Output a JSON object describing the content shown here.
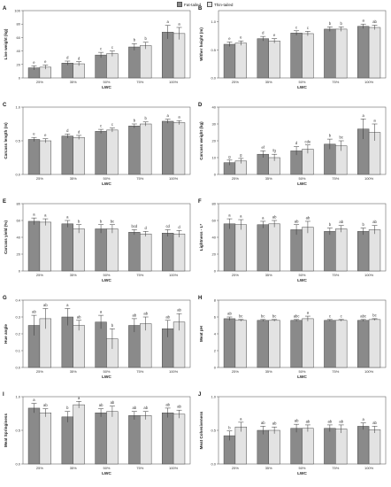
{
  "legend": {
    "items": [
      {
        "label": "Fat-tailed",
        "color": "#8a8a8a"
      },
      {
        "label": "Thin-tailed",
        "color": "#e3e3e3"
      }
    ]
  },
  "colors": {
    "fat": "#8a8a8a",
    "thin": "#e3e3e3",
    "border": "#4a4a4a"
  },
  "chart_data": [
    {
      "panel": "A",
      "type": "bar",
      "ylabel": "Live weight (kg)",
      "xlabel": "LWC",
      "categories": [
        "25%",
        "35%",
        "50%",
        "75%",
        "100%"
      ],
      "ylim": [
        0,
        100
      ],
      "yticks": [
        0,
        20,
        40,
        60,
        80,
        100
      ],
      "series": [
        {
          "name": "Fat-tailed",
          "values": [
            15,
            22,
            34,
            46,
            68
          ],
          "errors": [
            3,
            3,
            4,
            5,
            10
          ]
        },
        {
          "name": "Thin-tailed",
          "values": [
            16,
            21,
            36,
            48,
            66
          ],
          "errors": [
            3,
            3,
            4,
            5,
            9
          ]
        }
      ],
      "letters": [
        [
          "e",
          "e"
        ],
        [
          "d",
          "d"
        ],
        [
          "c",
          "c"
        ],
        [
          "b",
          "b"
        ],
        [
          "a",
          "a"
        ]
      ]
    },
    {
      "panel": "B",
      "type": "bar",
      "ylabel": "Wither height (m)",
      "xlabel": "LWC",
      "categories": [
        "25%",
        "35%",
        "50%",
        "75%",
        "100%"
      ],
      "ylim": [
        0,
        1.2
      ],
      "yticks": [
        0.0,
        0.5,
        1.0
      ],
      "series": [
        {
          "name": "Fat-tailed",
          "values": [
            0.6,
            0.7,
            0.8,
            0.87,
            0.92
          ],
          "errors": [
            0.04,
            0.04,
            0.04,
            0.04,
            0.04
          ]
        },
        {
          "name": "Thin-tailed",
          "values": [
            0.62,
            0.66,
            0.79,
            0.87,
            0.9
          ],
          "errors": [
            0.04,
            0.04,
            0.04,
            0.04,
            0.04
          ]
        }
      ],
      "letters": [
        [
          "e",
          "e"
        ],
        [
          "d",
          "e"
        ],
        [
          "c",
          "c"
        ],
        [
          "b",
          "b"
        ],
        [
          "a",
          "ab"
        ]
      ]
    },
    {
      "panel": "C",
      "type": "bar",
      "ylabel": "Carcass length (m)",
      "xlabel": "LWC",
      "categories": [
        "25%",
        "35%",
        "50%",
        "75%",
        "100%"
      ],
      "ylim": [
        0,
        1.0
      ],
      "yticks": [
        0.0,
        0.5,
        1.0
      ],
      "series": [
        {
          "name": "Fat-tailed",
          "values": [
            0.52,
            0.57,
            0.64,
            0.72,
            0.79
          ],
          "errors": [
            0.03,
            0.03,
            0.03,
            0.03,
            0.03
          ]
        },
        {
          "name": "Thin-tailed",
          "values": [
            0.5,
            0.55,
            0.66,
            0.75,
            0.77
          ],
          "errors": [
            0.03,
            0.03,
            0.03,
            0.03,
            0.03
          ]
        }
      ],
      "letters": [
        [
          "e",
          "e"
        ],
        [
          "d",
          "d"
        ],
        [
          "c",
          "c"
        ],
        [
          "b",
          "b"
        ],
        [
          "a",
          "a"
        ]
      ]
    },
    {
      "panel": "D",
      "type": "bar",
      "ylabel": "Carcass weight (kg)",
      "xlabel": "LWC",
      "categories": [
        "25%",
        "35%",
        "50%",
        "75%",
        "100%"
      ],
      "ylim": [
        0,
        40
      ],
      "yticks": [
        0,
        10,
        20,
        30,
        40
      ],
      "series": [
        {
          "name": "Fat-tailed",
          "values": [
            7,
            12,
            14,
            18,
            27
          ],
          "errors": [
            1.5,
            2,
            2.5,
            3,
            6
          ]
        },
        {
          "name": "Thin-tailed",
          "values": [
            8,
            10,
            15,
            17,
            25
          ],
          "errors": [
            1.5,
            2,
            2.5,
            3,
            5
          ]
        }
      ],
      "letters": [
        [
          "g",
          "g"
        ],
        [
          "ef",
          "fg"
        ],
        [
          "d",
          "cde"
        ],
        [
          "b",
          "bc"
        ],
        [
          "a",
          "a"
        ]
      ]
    },
    {
      "panel": "E",
      "type": "bar",
      "ylabel": "Carcass yield (%)",
      "xlabel": "LWC",
      "categories": [
        "25%",
        "35%",
        "50%",
        "75%",
        "100%"
      ],
      "ylim": [
        0,
        80
      ],
      "yticks": [
        0,
        20,
        40,
        60,
        80
      ],
      "series": [
        {
          "name": "Fat-tailed",
          "values": [
            59,
            56,
            50,
            46,
            45
          ],
          "errors": [
            4,
            4,
            5,
            3,
            4
          ]
        },
        {
          "name": "Thin-tailed",
          "values": [
            58,
            50,
            50,
            44,
            44
          ],
          "errors": [
            4,
            5,
            5,
            3,
            4
          ]
        }
      ],
      "letters": [
        [
          "a",
          "a"
        ],
        [
          "a",
          "b"
        ],
        [
          "b",
          "bc"
        ],
        [
          "bcd",
          "d"
        ],
        [
          "cd",
          "d"
        ]
      ]
    },
    {
      "panel": "F",
      "type": "bar",
      "ylabel": "Lightness - L*",
      "xlabel": "LWC",
      "categories": [
        "25%",
        "35%",
        "50%",
        "75%",
        "100%"
      ],
      "ylim": [
        0,
        80
      ],
      "yticks": [
        0,
        20,
        40,
        60,
        80
      ],
      "series": [
        {
          "name": "Fat-tailed",
          "values": [
            56,
            55,
            49,
            47,
            47
          ],
          "errors": [
            6,
            4,
            6,
            4,
            4
          ]
        },
        {
          "name": "Thin-tailed",
          "values": [
            55,
            56,
            52,
            50,
            49
          ],
          "errors": [
            6,
            4,
            7,
            4,
            5
          ]
        }
      ],
      "letters": [
        [
          "a",
          "a"
        ],
        [
          "a",
          "ab"
        ],
        [
          "ab",
          "ab"
        ],
        [
          "b",
          "ab"
        ],
        [
          "b",
          "ab"
        ]
      ]
    },
    {
      "panel": "G",
      "type": "bar",
      "ylabel": "Hue angle",
      "xlabel": "LWC",
      "categories": [
        "25%",
        "35%",
        "50%",
        "75%",
        "100%"
      ],
      "ylim": [
        0,
        0.4
      ],
      "yticks": [
        0.0,
        0.1,
        0.2,
        0.3,
        0.4
      ],
      "series": [
        {
          "name": "Fat-tailed",
          "values": [
            0.25,
            0.3,
            0.27,
            0.25,
            0.23
          ],
          "errors": [
            0.06,
            0.05,
            0.04,
            0.04,
            0.05
          ]
        },
        {
          "name": "Thin-tailed",
          "values": [
            0.29,
            0.25,
            0.17,
            0.26,
            0.27
          ],
          "errors": [
            0.06,
            0.03,
            0.06,
            0.04,
            0.05
          ]
        }
      ],
      "letters": [
        [
          "ab",
          "ab"
        ],
        [
          "a",
          "ab"
        ],
        [
          "a",
          "b"
        ],
        [
          "ab",
          "ab"
        ],
        [
          "ab",
          "ab"
        ]
      ]
    },
    {
      "panel": "H",
      "type": "bar",
      "ylabel": "Meat pH",
      "xlabel": "LWC",
      "categories": [
        "25%",
        "35%",
        "50%",
        "75%",
        "100%"
      ],
      "ylim": [
        0,
        8
      ],
      "yticks": [
        0,
        2,
        4,
        6,
        8
      ],
      "series": [
        {
          "name": "Fat-tailed",
          "values": [
            5.8,
            5.6,
            5.6,
            5.6,
            5.6
          ],
          "errors": [
            0.2,
            0.1,
            0.1,
            0.1,
            0.1
          ]
        },
        {
          "name": "Thin-tailed",
          "values": [
            5.6,
            5.6,
            5.8,
            5.6,
            5.7
          ],
          "errors": [
            0.1,
            0.1,
            0.3,
            0.1,
            0.1
          ]
        }
      ],
      "letters": [
        [
          "ab",
          "bc"
        ],
        [
          "bc",
          "bc"
        ],
        [
          "abc",
          "a"
        ],
        [
          "c",
          "c"
        ],
        [
          "abc",
          "bc"
        ]
      ]
    },
    {
      "panel": "I",
      "type": "bar",
      "ylabel": "Meat Springiness",
      "xlabel": "LWC",
      "categories": [
        "25%",
        "35%",
        "50%",
        "75%",
        "100%"
      ],
      "ylim": [
        0,
        1.0
      ],
      "yticks": [
        0.0,
        0.5,
        1.0
      ],
      "series": [
        {
          "name": "Fat-tailed",
          "values": [
            0.83,
            0.7,
            0.76,
            0.72,
            0.76
          ],
          "errors": [
            0.07,
            0.08,
            0.06,
            0.06,
            0.07
          ]
        },
        {
          "name": "Thin-tailed",
          "values": [
            0.76,
            0.88,
            0.78,
            0.72,
            0.74
          ],
          "errors": [
            0.06,
            0.05,
            0.08,
            0.06,
            0.06
          ]
        }
      ],
      "letters": [
        [
          "a",
          "ab"
        ],
        [
          "b",
          "a"
        ],
        [
          "ab",
          "ab"
        ],
        [
          "ab",
          "ab"
        ],
        [
          "ab",
          "ab"
        ]
      ]
    },
    {
      "panel": "J",
      "type": "bar",
      "ylabel": "Meat Cohesiveness",
      "xlabel": "LWC",
      "categories": [
        "25%",
        "35%",
        "50%",
        "75%",
        "100%"
      ],
      "ylim": [
        0,
        1.0
      ],
      "yticks": [
        0.0,
        0.5,
        1.0
      ],
      "series": [
        {
          "name": "Fat-tailed",
          "values": [
            0.42,
            0.5,
            0.53,
            0.53,
            0.56
          ],
          "errors": [
            0.07,
            0.06,
            0.06,
            0.05,
            0.05
          ]
        },
        {
          "name": "Thin-tailed",
          "values": [
            0.55,
            0.5,
            0.53,
            0.52,
            0.51
          ],
          "errors": [
            0.07,
            0.05,
            0.05,
            0.06,
            0.05
          ]
        }
      ],
      "letters": [
        [
          "b",
          "a"
        ],
        [
          "ab",
          "ab"
        ],
        [
          "ab",
          "ab"
        ],
        [
          "ab",
          "ab"
        ],
        [
          "a",
          "ab"
        ]
      ]
    }
  ]
}
